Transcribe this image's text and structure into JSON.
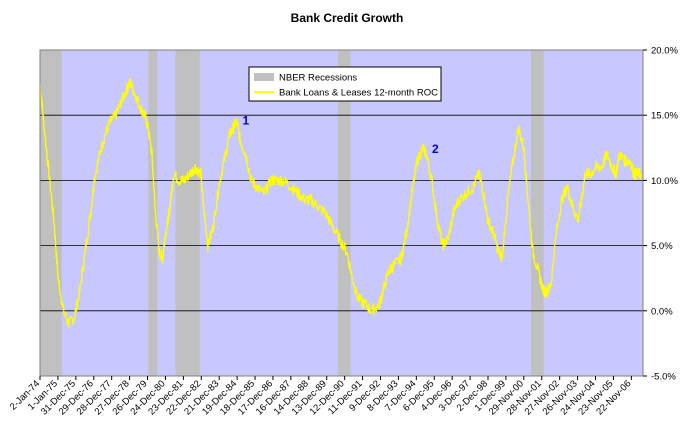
{
  "chart_data": {
    "type": "line",
    "title": "Bank Credit Growth",
    "xlabel": "",
    "ylabel": "",
    "ylim": [
      -5,
      20
    ],
    "y_ticks": [
      "-5.0%",
      "0.0%",
      "5.0%",
      "10.0%",
      "15.0%",
      "20.0%"
    ],
    "y_tick_values": [
      -5,
      0,
      5,
      10,
      15,
      20
    ],
    "y_axis_side": "right",
    "x_range_years": [
      1974.0,
      2007.4
    ],
    "x_tick_labels": [
      "2-Jan-74",
      "1-Jan-75",
      "31-Dec-75",
      "29-Dec-76",
      "28-Dec-77",
      "27-Dec-78",
      "26-Dec-79",
      "24-Dec-80",
      "23-Dec-81",
      "22-Dec-82",
      "21-Dec-83",
      "19-Dec-84",
      "18-Dec-85",
      "17-Dec-86",
      "16-Dec-87",
      "14-Dec-88",
      "13-Dec-89",
      "12-Dec-90",
      "11-Dec-91",
      "9-Dec-92",
      "8-Dec-93",
      "7-Dec-94",
      "6-Dec-95",
      "4-Dec-96",
      "3-Dec-97",
      "2-Dec-98",
      "1-Dec-99",
      "29-Nov-00",
      "28-Nov-01",
      "27-Nov-02",
      "26-Nov-03",
      "24-Nov-04",
      "23-Nov-05",
      "22-Nov-06"
    ],
    "grid": true,
    "legend_position": "top-center",
    "plot_background": "#c8c8ff",
    "recession_color": "#c0c0c0",
    "line_color": "#ffff00",
    "legend": [
      {
        "name": "NBER Recessions",
        "kind": "band",
        "color": "#c0c0c0"
      },
      {
        "name": "Bank Loans & Leases 12-month ROC",
        "kind": "line",
        "color": "#ffff00"
      }
    ],
    "recessions": [
      {
        "start": 1974.0,
        "end": 1975.2
      },
      {
        "start": 1980.0,
        "end": 1980.5
      },
      {
        "start": 1981.5,
        "end": 1982.85
      },
      {
        "start": 1990.5,
        "end": 1991.2
      },
      {
        "start": 2001.2,
        "end": 2001.9
      }
    ],
    "series": [
      {
        "name": "Bank Loans & Leases 12-month ROC",
        "x": [
          1974.0,
          1974.2,
          1974.5,
          1974.8,
          1975.0,
          1975.3,
          1975.6,
          1975.9,
          1976.2,
          1976.5,
          1976.8,
          1977.0,
          1977.3,
          1977.6,
          1977.9,
          1978.2,
          1978.5,
          1978.8,
          1979.0,
          1979.3,
          1979.6,
          1979.8,
          1980.0,
          1980.2,
          1980.4,
          1980.6,
          1980.8,
          1980.9,
          1981.1,
          1981.2,
          1981.4,
          1981.7,
          1982.0,
          1982.3,
          1982.6,
          1982.9,
          1983.1,
          1983.3,
          1983.6,
          1983.9,
          1984.2,
          1984.5,
          1984.7,
          1984.9,
          1985.1,
          1985.4,
          1985.7,
          1986.0,
          1986.4,
          1986.8,
          1987.1,
          1987.5,
          1987.9,
          1988.3,
          1988.7,
          1989.0,
          1989.4,
          1989.8,
          1990.2,
          1990.6,
          1991.0,
          1991.3,
          1991.6,
          1992.0,
          1992.4,
          1992.8,
          1993.0,
          1993.3,
          1993.6,
          1994.0,
          1994.3,
          1994.6,
          1994.9,
          1995.2,
          1995.4,
          1995.7,
          1996.0,
          1996.3,
          1996.6,
          1996.9,
          1997.2,
          1997.6,
          1998.0,
          1998.3,
          1998.5,
          1998.8,
          1999.1,
          1999.4,
          1999.6,
          1999.9,
          2000.2,
          2000.5,
          2000.8,
          2001.0,
          2001.3,
          2001.6,
          2001.9,
          2002.1,
          2002.3,
          2002.6,
          2002.9,
          2003.2,
          2003.5,
          2003.8,
          2004.0,
          2004.2,
          2004.5,
          2004.8,
          2005.1,
          2005.4,
          2005.7,
          2005.9,
          2006.1,
          2006.4,
          2006.7,
          2006.9,
          2007.1,
          2007.3
        ],
        "values": [
          17.5,
          14.5,
          10.5,
          6.5,
          2.5,
          0.0,
          -1.0,
          -0.5,
          1.5,
          4.5,
          7.5,
          10.0,
          12.0,
          13.5,
          14.5,
          15.0,
          16.0,
          17.0,
          17.5,
          16.5,
          15.5,
          15.0,
          14.0,
          12.0,
          7.5,
          4.5,
          4.0,
          5.5,
          7.0,
          8.0,
          10.5,
          10.0,
          10.0,
          10.5,
          11.0,
          10.5,
          7.5,
          5.0,
          6.5,
          9.5,
          11.5,
          13.5,
          14.0,
          14.5,
          13.0,
          12.0,
          10.0,
          9.5,
          9.0,
          10.0,
          10.0,
          10.0,
          9.5,
          9.0,
          8.5,
          8.5,
          8.0,
          7.5,
          6.5,
          5.5,
          4.5,
          2.5,
          1.0,
          0.5,
          0.0,
          0.5,
          1.5,
          3.0,
          3.5,
          4.0,
          6.0,
          9.0,
          11.5,
          12.5,
          12.0,
          10.0,
          7.0,
          5.0,
          5.5,
          7.5,
          8.5,
          9.0,
          9.5,
          10.5,
          9.5,
          7.0,
          6.0,
          4.5,
          4.0,
          8.5,
          11.5,
          14.0,
          12.5,
          9.0,
          4.5,
          3.0,
          1.5,
          1.5,
          2.0,
          6.0,
          8.5,
          9.5,
          8.0,
          7.0,
          8.5,
          10.5,
          10.5,
          11.0,
          11.0,
          12.0,
          11.0,
          10.5,
          12.0,
          11.5,
          11.5,
          10.5,
          10.5,
          10.5
        ]
      }
    ],
    "annotations": [
      {
        "text": "1",
        "x": 1985.4,
        "y": 14.3
      },
      {
        "text": "2",
        "x": 1995.9,
        "y": 12.1
      }
    ]
  }
}
